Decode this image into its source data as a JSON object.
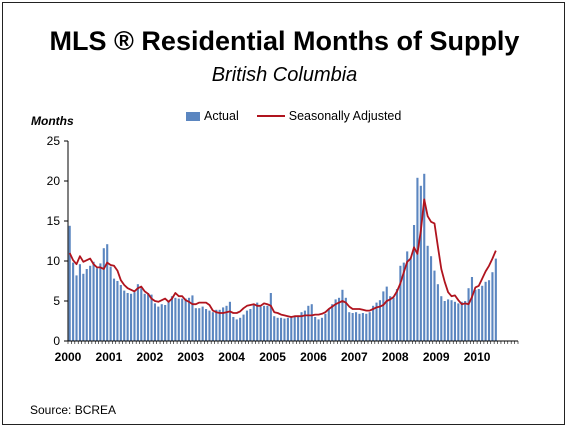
{
  "title": "MLS ® Residential Months of Supply",
  "subtitle": "British Columbia",
  "source": "Source: BCREA",
  "chart_data": {
    "type": "bar",
    "ylabel": "Months",
    "xlabel": "",
    "ylim": [
      0,
      25
    ],
    "yticks": [
      0,
      5,
      10,
      15,
      20,
      25
    ],
    "xtick_labels": [
      "2000",
      "2001",
      "2002",
      "2003",
      "2004",
      "2005",
      "2006",
      "2007",
      "2008",
      "2009",
      "2010"
    ],
    "start": "2000-01",
    "frequency": "monthly",
    "legend": {
      "placement": "top"
    },
    "series": [
      {
        "name": "Actual",
        "kind": "bar",
        "color": "#5b86c0",
        "values": [
          14.4,
          9.8,
          8.2,
          9.6,
          8.4,
          9.0,
          9.4,
          9.9,
          9.1,
          9.7,
          11.6,
          12.1,
          9.3,
          7.8,
          7.5,
          7.0,
          6.3,
          6.0,
          5.9,
          6.1,
          7.1,
          6.6,
          5.9,
          6.0,
          5.8,
          4.7,
          4.3,
          4.6,
          4.5,
          4.9,
          5.6,
          5.4,
          5.3,
          5.3,
          5.3,
          5.4,
          5.7,
          4.1,
          4.1,
          4.3,
          4.0,
          3.8,
          3.6,
          3.9,
          3.9,
          4.2,
          4.4,
          4.9,
          3.0,
          2.7,
          2.9,
          3.3,
          3.8,
          4.0,
          4.5,
          4.8,
          4.3,
          4.4,
          4.4,
          6.0,
          3.1,
          2.9,
          2.9,
          2.8,
          2.9,
          3.0,
          3.1,
          3.2,
          3.6,
          3.8,
          4.4,
          4.6,
          3.0,
          2.7,
          2.9,
          3.4,
          4.0,
          4.6,
          5.2,
          5.4,
          6.4,
          5.4,
          3.6,
          3.5,
          3.6,
          3.4,
          3.5,
          3.4,
          3.6,
          4.4,
          4.8,
          5.1,
          6.2,
          6.8,
          5.6,
          5.4,
          6.5,
          9.4,
          9.8,
          11.2,
          10.4,
          14.5,
          20.4,
          19.4,
          20.9,
          11.9,
          10.6,
          8.8,
          7.1,
          5.6,
          5.0,
          5.2,
          5.1,
          4.9,
          4.7,
          4.9,
          5.0,
          6.6,
          8.0,
          6.4,
          6.5,
          6.9,
          7.4,
          7.6,
          8.6,
          10.3
        ]
      },
      {
        "name": "Seasonally Adjusted",
        "kind": "line",
        "color": "#b0141e",
        "values": [
          11.0,
          10.1,
          9.6,
          10.6,
          9.9,
          10.1,
          10.3,
          9.6,
          9.2,
          9.2,
          9.0,
          9.8,
          9.5,
          9.4,
          8.8,
          7.6,
          7.0,
          6.6,
          6.4,
          6.2,
          6.6,
          6.8,
          6.2,
          5.9,
          5.3,
          5.0,
          4.9,
          5.1,
          5.3,
          4.9,
          5.3,
          6.0,
          5.6,
          5.6,
          5.1,
          4.9,
          4.6,
          4.6,
          4.8,
          4.8,
          4.8,
          4.5,
          3.8,
          3.6,
          3.5,
          3.5,
          3.6,
          3.7,
          3.5,
          3.5,
          3.7,
          4.1,
          4.4,
          4.5,
          4.6,
          4.4,
          4.4,
          4.7,
          4.6,
          4.4,
          3.6,
          3.5,
          3.3,
          3.2,
          3.1,
          3.0,
          3.1,
          3.1,
          3.1,
          3.2,
          3.2,
          3.2,
          3.3,
          3.3,
          3.4,
          3.6,
          4.0,
          4.3,
          4.6,
          4.8,
          5.0,
          4.8,
          4.3,
          4.0,
          4.0,
          4.0,
          3.9,
          3.8,
          3.8,
          4.0,
          4.2,
          4.3,
          4.5,
          5.0,
          5.2,
          5.5,
          6.2,
          7.2,
          8.6,
          9.9,
          10.3,
          11.7,
          10.9,
          13.8,
          17.7,
          15.6,
          14.9,
          14.7,
          11.8,
          9.0,
          7.4,
          6.1,
          5.6,
          5.7,
          5.1,
          4.6,
          4.7,
          4.6,
          5.5,
          6.7,
          6.9,
          7.8,
          8.7,
          9.4,
          10.3,
          11.3
        ]
      }
    ]
  }
}
